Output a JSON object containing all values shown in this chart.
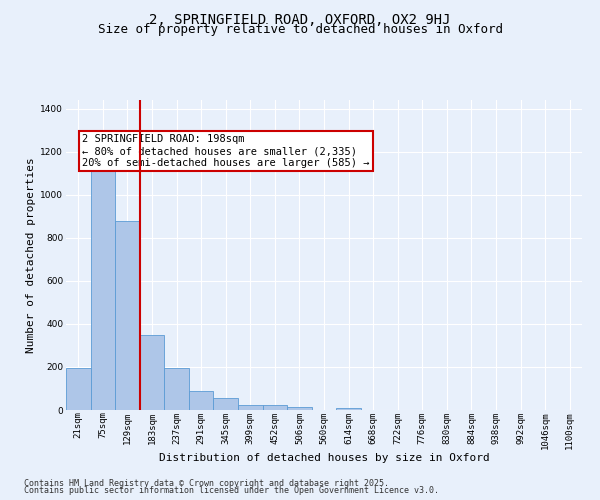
{
  "title_line1": "2, SPRINGFIELD ROAD, OXFORD, OX2 9HJ",
  "title_line2": "Size of property relative to detached houses in Oxford",
  "xlabel": "Distribution of detached houses by size in Oxford",
  "ylabel": "Number of detached properties",
  "categories": [
    "21sqm",
    "75sqm",
    "129sqm",
    "183sqm",
    "237sqm",
    "291sqm",
    "345sqm",
    "399sqm",
    "452sqm",
    "506sqm",
    "560sqm",
    "614sqm",
    "668sqm",
    "722sqm",
    "776sqm",
    "830sqm",
    "884sqm",
    "938sqm",
    "992sqm",
    "1046sqm",
    "1100sqm"
  ],
  "values": [
    195,
    1130,
    880,
    350,
    195,
    90,
    55,
    22,
    22,
    15,
    0,
    10,
    0,
    0,
    0,
    0,
    0,
    0,
    0,
    0,
    0
  ],
  "bar_color": "#aec6e8",
  "bar_edge_color": "#5b9bd5",
  "vline_x": 2.5,
  "vline_color": "#cc0000",
  "annotation_text": "2 SPRINGFIELD ROAD: 198sqm\n← 80% of detached houses are smaller (2,335)\n20% of semi-detached houses are larger (585) →",
  "annotation_box_color": "#ffffff",
  "annotation_box_edge": "#cc0000",
  "ylim": [
    0,
    1440
  ],
  "yticks": [
    0,
    200,
    400,
    600,
    800,
    1000,
    1200,
    1400
  ],
  "background_color": "#e8f0fb",
  "grid_color": "#ffffff",
  "footer_line1": "Contains HM Land Registry data © Crown copyright and database right 2025.",
  "footer_line2": "Contains public sector information licensed under the Open Government Licence v3.0.",
  "title_fontsize": 10,
  "subtitle_fontsize": 9,
  "axis_label_fontsize": 8,
  "tick_fontsize": 6.5,
  "annotation_fontsize": 7.5,
  "footer_fontsize": 6
}
